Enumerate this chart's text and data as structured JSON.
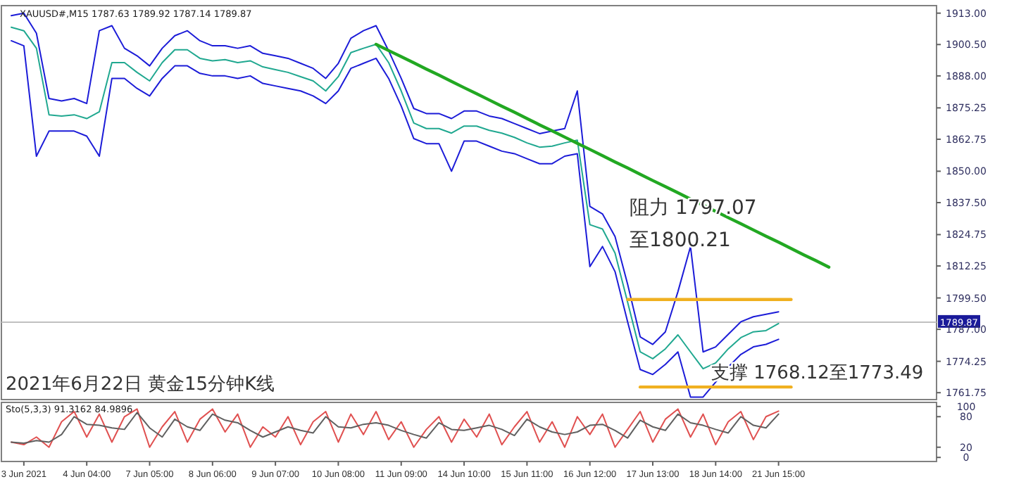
{
  "chart_data": [
    {
      "type": "line",
      "title": "XAUUSD#,M15 1787.63 1789.92 1787.14 1789.87",
      "categories": [
        null,
        null,
        null,
        null,
        null,
        null,
        null,
        null,
        null,
        null,
        null,
        null,
        null,
        null,
        null,
        null,
        null,
        null,
        null,
        null,
        null,
        null,
        null,
        null,
        null,
        null,
        null,
        null,
        null,
        null,
        null,
        null,
        null,
        null,
        null,
        null,
        null,
        null,
        null,
        null,
        null,
        null,
        null,
        null,
        null,
        null,
        null,
        null,
        null,
        null,
        null,
        null,
        null,
        null,
        null,
        null,
        null,
        null,
        null,
        null,
        null,
        null,
        null,
        null,
        null,
        null,
        null,
        null,
        null,
        null,
        null,
        null,
        null,
        null
      ],
      "series": [
        {
          "color": "#1c1cd8",
          "values": [
            1912,
            1913,
            1905,
            1879,
            1878,
            1879,
            1877,
            1906,
            1908,
            1899,
            1896,
            1892,
            1899,
            1904,
            1906,
            1902,
            1900,
            1900,
            1899,
            1900,
            1897,
            1896,
            1895,
            1893,
            1891,
            1887,
            1893,
            1903,
            1906,
            1908,
            1898,
            1887,
            1875,
            1873,
            1873,
            1871,
            1874,
            1874,
            1872,
            1871,
            1869,
            1867,
            1865,
            1866,
            1867,
            1882,
            1836,
            1833,
            1824,
            1805,
            1784,
            1781,
            1786,
            1802,
            1820,
            1778,
            1780,
            1785,
            1790,
            1792,
            1793,
            1794,
            null,
            null,
            null,
            null,
            null,
            null,
            null,
            null,
            null,
            null,
            null,
            null
          ]
        },
        {
          "color": "#1c1cd8",
          "values": [
            1902,
            1900,
            1856,
            1866,
            1866,
            1866,
            1864,
            1856,
            1887,
            1887,
            1883,
            1880,
            1887,
            1892,
            1892,
            1889,
            1888,
            1888,
            1887,
            1888,
            1885,
            1884,
            1883,
            1882,
            1880,
            1877,
            1882,
            1891,
            1893,
            1895,
            1887,
            1876,
            1863,
            1861,
            1861,
            1850,
            1862,
            1862,
            1860,
            1858,
            1857,
            1855,
            1853,
            1853,
            1856,
            1857,
            1812,
            1820,
            1810,
            1790,
            1771,
            1769,
            1773,
            1778,
            1760,
            1760,
            1766,
            1772,
            1777,
            1780,
            1781,
            1783,
            null,
            null,
            null,
            null,
            null,
            null,
            null,
            null,
            null,
            null,
            null,
            null
          ]
        },
        {
          "color": "#20a890",
          "values": [
            1907.4,
            1906,
            1899,
            1872.5,
            1872,
            1872.5,
            1871,
            1873.7,
            1893.3,
            1893.3,
            1889.4,
            1886,
            1893.3,
            1898.4,
            1898.4,
            1895,
            1894,
            1894.5,
            1893.3,
            1894,
            1891.6,
            1890.5,
            1889.4,
            1887.7,
            1886,
            1882,
            1887.7,
            1897.3,
            1899,
            1900.6,
            1893.3,
            1882,
            1869.2,
            1867,
            1867,
            1865.2,
            1868,
            1868,
            1866.3,
            1865.2,
            1863.5,
            1861.3,
            1859.6,
            1860,
            1861.3,
            1862.4,
            1828.7,
            1827,
            1817.4,
            1797.8,
            1778,
            1775.3,
            1779.2,
            1784.8,
            1778,
            1771.3,
            1773.6,
            1779.2,
            1783.7,
            1786,
            1786.5,
            1789.3,
            null,
            null,
            null,
            null,
            null,
            null,
            null,
            null,
            null,
            null,
            null,
            null
          ]
        },
        {
          "color": "#22a822",
          "values": [
            null,
            null,
            null,
            null,
            null,
            null,
            null,
            null,
            null,
            null,
            null,
            null,
            null,
            null,
            null,
            null,
            null,
            null,
            null,
            null,
            null,
            null,
            null,
            null,
            null,
            null,
            null,
            null,
            null,
            1900.6,
            1898.1,
            1895.7,
            1893.2,
            1890.7,
            1888.3,
            1885.8,
            1883.3,
            1880.9,
            1878.4,
            1875.9,
            1873.5,
            1871.0,
            1868.5,
            1866.1,
            1863.6,
            1861.1,
            1858.7,
            1856.2,
            1853.7,
            1851.3,
            1848.8,
            1846.3,
            1843.9,
            1841.4,
            1838.9,
            1836.5,
            1834.0,
            1831.5,
            1829.1,
            1826.6,
            1824.1,
            1821.7,
            1819.2,
            1816.7,
            1814.3,
            1811.8,
            null,
            null,
            null,
            null,
            null,
            null,
            null,
            null
          ]
        },
        {
          "color": "#f0b020",
          "values": [
            null,
            null,
            null,
            null,
            null,
            null,
            null,
            null,
            null,
            null,
            null,
            null,
            null,
            null,
            null,
            null,
            null,
            null,
            null,
            null,
            null,
            null,
            null,
            null,
            null,
            null,
            null,
            null,
            null,
            null,
            null,
            null,
            null,
            null,
            null,
            null,
            null,
            null,
            null,
            null,
            null,
            null,
            null,
            null,
            null,
            null,
            null,
            null,
            null,
            1798.9,
            1798.9,
            1798.9,
            1798.9,
            1798.9,
            1798.9,
            1798.9,
            1798.9,
            1798.9,
            1798.9,
            1798.9,
            1798.9,
            1798.9,
            1798.9,
            null,
            null,
            null,
            null,
            null,
            null,
            null,
            null,
            null,
            null,
            null
          ]
        },
        {
          "color": "#f0b020",
          "values": [
            null,
            null,
            null,
            null,
            null,
            null,
            null,
            null,
            null,
            null,
            null,
            null,
            null,
            null,
            null,
            null,
            null,
            null,
            null,
            null,
            null,
            null,
            null,
            null,
            null,
            null,
            null,
            null,
            null,
            null,
            null,
            null,
            null,
            null,
            null,
            null,
            null,
            null,
            null,
            null,
            null,
            null,
            null,
            null,
            null,
            null,
            null,
            null,
            null,
            null,
            1764,
            1764,
            1764,
            1764,
            1764,
            1764,
            1764,
            1764,
            1764,
            1764,
            1764,
            1764,
            1764,
            null,
            null,
            null,
            null,
            null,
            null,
            null,
            null,
            null,
            null,
            null
          ]
        }
      ],
      "ylim": [
        1759,
        1916
      ],
      "yticks": [
        {
          "value": 1913,
          "label": "1913.00"
        },
        {
          "value": 1900.5,
          "label": "1900.50"
        },
        {
          "value": 1888,
          "label": "1888.00"
        },
        {
          "value": 1875.25,
          "label": "1875.25"
        },
        {
          "value": 1862.75,
          "label": "1862.75"
        },
        {
          "value": 1850,
          "label": "1850.00"
        },
        {
          "value": 1837.5,
          "label": "1837.50"
        },
        {
          "value": 1824.75,
          "label": "1824.75"
        },
        {
          "value": 1812.25,
          "label": "1812.25"
        },
        {
          "value": 1799.5,
          "label": "1799.50"
        },
        {
          "value": 1787,
          "label": "1787.00"
        },
        {
          "value": 1774.25,
          "label": "1774.25"
        },
        {
          "value": 1761.75,
          "label": "1761.75"
        }
      ],
      "ref_lines": [
        {
          "axis": "y",
          "value": 1789.87,
          "label": "1789.87",
          "color": "#c0c0c0"
        }
      ],
      "annotations": [
        "2021年6月22日 黄金15分钟K线",
        "阻力 1797.07\n至1800.21",
        "支撑 1768.12至1773.49"
      ],
      "tick_labels": "y"
    },
    {
      "type": "line",
      "title": "Sto(5,3,3) 91.3162 84.9896",
      "categories": [
        null,
        "3 Jun 2021",
        null,
        null,
        null,
        null,
        "4 Jun 04:00",
        null,
        null,
        null,
        null,
        "7 Jun 05:00",
        null,
        null,
        null,
        null,
        "8 Jun 06:00",
        null,
        null,
        null,
        null,
        "9 Jun 07:00",
        null,
        null,
        null,
        null,
        "10 Jun 08:00",
        null,
        null,
        null,
        null,
        "11 Jun 09:00",
        null,
        null,
        null,
        null,
        "14 Jun 10:00",
        null,
        null,
        null,
        null,
        "15 Jun 11:00",
        null,
        null,
        null,
        null,
        "16 Jun 12:00",
        null,
        null,
        null,
        null,
        "17 Jun 13:00",
        null,
        null,
        null,
        null,
        "18 Jun 14:00",
        null,
        null,
        null,
        null,
        "21 Jun 15:00",
        null,
        null,
        null,
        null,
        null,
        null,
        null,
        null,
        null,
        null,
        null,
        null
      ],
      "series": [
        {
          "color": "#e05050",
          "values": [
            30,
            25,
            40,
            20,
            70,
            90,
            40,
            85,
            30,
            80,
            95,
            20,
            60,
            90,
            30,
            75,
            95,
            50,
            85,
            20,
            60,
            40,
            80,
            25,
            70,
            90,
            30,
            85,
            45,
            90,
            35,
            70,
            20,
            55,
            80,
            30,
            75,
            40,
            85,
            25,
            60,
            90,
            30,
            70,
            20,
            80,
            45,
            85,
            20,
            55,
            90,
            30,
            75,
            95,
            40,
            85,
            25,
            70,
            90,
            35,
            80,
            91,
            null,
            null,
            null,
            null,
            null,
            null,
            null,
            null,
            null,
            null,
            null,
            null
          ]
        },
        {
          "color": "#606060",
          "values": [
            30,
            28,
            33,
            30,
            45,
            80,
            65,
            63,
            58,
            55,
            88,
            58,
            40,
            75,
            60,
            53,
            85,
            73,
            68,
            53,
            40,
            50,
            60,
            53,
            48,
            80,
            60,
            58,
            65,
            68,
            63,
            53,
            45,
            38,
            68,
            55,
            53,
            58,
            63,
            55,
            43,
            75,
            60,
            50,
            45,
            50,
            63,
            65,
            53,
            38,
            73,
            60,
            53,
            85,
            68,
            63,
            55,
            48,
            80,
            63,
            58,
            85,
            null,
            null,
            null,
            null,
            null,
            null,
            null,
            null,
            null,
            null,
            null,
            null
          ]
        }
      ],
      "ylim": [
        -8,
        108
      ],
      "yticks": [
        100,
        80,
        20,
        0
      ]
    }
  ]
}
